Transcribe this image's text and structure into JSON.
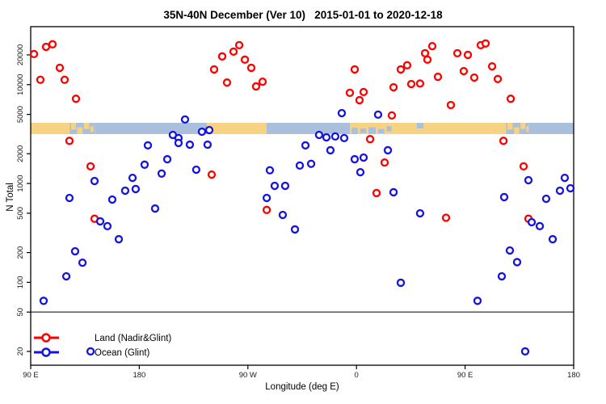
{
  "title": "35N-40N December (Ver 10)   2015-01-01 to 2020-12-18",
  "chart_data": {
    "type": "scatter",
    "title": "35N-40N December (Ver 10)   2015-01-01 to 2020-12-18",
    "xlabel": "Longitude (deg E)",
    "ylabel": "N Total",
    "x_axis": {
      "range": [
        90,
        540
      ],
      "note": "longitude axis wraps: 90E to 180 to 90W to 0 to 90E to 180",
      "ticks": [
        {
          "pos": 90,
          "label": "90 E"
        },
        {
          "pos": 180,
          "label": "180"
        },
        {
          "pos": 270,
          "label": "90 W"
        },
        {
          "pos": 360,
          "label": "0"
        },
        {
          "pos": 450,
          "label": "90 E"
        },
        {
          "pos": 540,
          "label": "180"
        }
      ]
    },
    "y_axis": {
      "scale": "log10",
      "range": [
        14.5,
        38600
      ],
      "ticks": [
        20,
        50,
        100,
        200,
        500,
        1000,
        2000,
        5000,
        10000,
        20000
      ]
    },
    "reference_line": {
      "N": 50,
      "color": "#444444"
    },
    "map_band": {
      "N_top": 4110,
      "N_bottom": 3160,
      "land_color": "#F7D283",
      "ocean_color": "#A9BFDC",
      "segments": [
        {
          "lon0": 90,
          "lon1": 118,
          "base": "land"
        },
        {
          "lon0": 118,
          "lon1": 143,
          "base": "ocean"
        },
        {
          "lon0": 143,
          "lon1": 236,
          "base": "ocean"
        },
        {
          "lon0": 236,
          "lon1": 285.5,
          "base": "land"
        },
        {
          "lon0": 285.5,
          "lon1": 352.5,
          "base": "ocean"
        },
        {
          "lon0": 352.5,
          "lon1": 392.5,
          "base": "land"
        },
        {
          "lon0": 392.5,
          "lon1": 479.5,
          "base": "land"
        },
        {
          "lon0": 479.5,
          "lon1": 503,
          "base": "ocean"
        },
        {
          "lon0": 503,
          "lon1": 540,
          "base": "ocean"
        }
      ],
      "patches": [
        {
          "lon0": 118,
          "lon1": 122.5,
          "top": 0,
          "bot": 1,
          "color": "land"
        },
        {
          "lon0": 123.5,
          "lon1": 127.5,
          "top": 0,
          "bot": 0.6,
          "color": "land"
        },
        {
          "lon0": 128.5,
          "lon1": 133,
          "top": 0.4,
          "bot": 1,
          "color": "land"
        },
        {
          "lon0": 134,
          "lon1": 138.5,
          "top": 0,
          "bot": 0.55,
          "color": "land"
        },
        {
          "lon0": 139.5,
          "lon1": 142,
          "top": 0.3,
          "bot": 0.8,
          "color": "land"
        },
        {
          "lon0": 352.5,
          "lon1": 354.5,
          "top": 0,
          "bot": 1,
          "color": "ocean"
        },
        {
          "lon0": 356,
          "lon1": 361,
          "top": 0.45,
          "bot": 1,
          "color": "ocean"
        },
        {
          "lon0": 363,
          "lon1": 368,
          "top": 0.5,
          "bot": 0.9,
          "color": "ocean"
        },
        {
          "lon0": 370,
          "lon1": 376,
          "top": 0.4,
          "bot": 1,
          "color": "ocean"
        },
        {
          "lon0": 378,
          "lon1": 383,
          "top": 0.55,
          "bot": 0.95,
          "color": "ocean"
        },
        {
          "lon0": 385,
          "lon1": 389,
          "top": 0.3,
          "bot": 0.75,
          "color": "ocean"
        },
        {
          "lon0": 410,
          "lon1": 415.5,
          "top": 0,
          "bot": 0.5,
          "color": "ocean"
        },
        {
          "lon0": 479.5,
          "lon1": 484,
          "top": 0,
          "bot": 1,
          "color": "land"
        },
        {
          "lon0": 485,
          "lon1": 489.5,
          "top": 0,
          "bot": 0.6,
          "color": "land"
        },
        {
          "lon0": 490.5,
          "lon1": 495,
          "top": 0.4,
          "bot": 1,
          "color": "land"
        },
        {
          "lon0": 496,
          "lon1": 500,
          "top": 0,
          "bot": 0.55,
          "color": "land"
        },
        {
          "lon0": 500.8,
          "lon1": 502.5,
          "top": 0.3,
          "bot": 0.8,
          "color": "land"
        }
      ]
    },
    "series": [
      {
        "name": "Land (Nadir&Glint)",
        "color": "#FF0000",
        "points": [
          [
            92.7,
            20400
          ],
          [
            102.7,
            24100
          ],
          [
            108.1,
            25600
          ],
          [
            114.1,
            14800
          ],
          [
            98.0,
            11200
          ],
          [
            118.1,
            11200
          ],
          [
            127.5,
            7200
          ],
          [
            122.1,
            2700
          ],
          [
            139.6,
            1490
          ],
          [
            142.9,
            440
          ],
          [
            240.0,
            1230
          ],
          [
            242.0,
            14250
          ],
          [
            248.7,
            19300
          ],
          [
            258.1,
            21600
          ],
          [
            262.8,
            25100
          ],
          [
            267.5,
            17900
          ],
          [
            272.8,
            14800
          ],
          [
            252.7,
            10500
          ],
          [
            276.8,
            9600
          ],
          [
            282.2,
            10700
          ],
          [
            358.5,
            14250
          ],
          [
            354.5,
            8260
          ],
          [
            365.9,
            8420
          ],
          [
            362.5,
            6970
          ],
          [
            390.7,
            9400
          ],
          [
            389.3,
            4880
          ],
          [
            396.7,
            14250
          ],
          [
            402.0,
            15700
          ],
          [
            405.4,
            10150
          ],
          [
            412.7,
            10260
          ],
          [
            416.8,
            20800
          ],
          [
            422.8,
            24500
          ],
          [
            418.8,
            17900
          ],
          [
            427.5,
            12000
          ],
          [
            438.2,
            6220
          ],
          [
            443.6,
            20800
          ],
          [
            448.9,
            13700
          ],
          [
            452.3,
            20000
          ],
          [
            463.0,
            25100
          ],
          [
            467.0,
            26100
          ],
          [
            457.6,
            11800
          ],
          [
            472.4,
            15300
          ],
          [
            477.1,
            11400
          ],
          [
            487.8,
            7200
          ],
          [
            481.8,
            2700
          ],
          [
            371.3,
            2810
          ],
          [
            383.3,
            1630
          ],
          [
            376.6,
            800
          ],
          [
            285.6,
            540
          ],
          [
            434.2,
            450
          ],
          [
            498.5,
            1490
          ],
          [
            502.5,
            440
          ]
        ]
      },
      {
        "name": "Ocean (Glint)",
        "color": "#1414E0",
        "points": [
          [
            217.9,
            4440
          ],
          [
            207.8,
            3100
          ],
          [
            212.5,
            2880
          ],
          [
            231.9,
            3340
          ],
          [
            238.0,
            3470
          ],
          [
            347.8,
            5150
          ],
          [
            377.9,
            4970
          ],
          [
            329.0,
            3100
          ],
          [
            335.1,
            2930
          ],
          [
            342.4,
            2990
          ],
          [
            349.8,
            2880
          ],
          [
            142.9,
            1060
          ],
          [
            122.1,
            714
          ],
          [
            157.6,
            687
          ],
          [
            147.6,
            414
          ],
          [
            153.6,
            370
          ],
          [
            163.0,
            273
          ],
          [
            126.8,
            206
          ],
          [
            168.3,
            845
          ],
          [
            174.4,
            1140
          ],
          [
            177.0,
            879
          ],
          [
            184.4,
            1550
          ],
          [
            187.1,
            2430
          ],
          [
            198.5,
            1260
          ],
          [
            193.1,
            558
          ],
          [
            203.2,
            1760
          ],
          [
            212.5,
            2570
          ],
          [
            221.9,
            2470
          ],
          [
            227.2,
            1380
          ],
          [
            236.6,
            2470
          ],
          [
            317.7,
            2430
          ],
          [
            338.4,
            2170
          ],
          [
            313.0,
            1520
          ],
          [
            322.4,
            1580
          ],
          [
            288.2,
            1360
          ],
          [
            292.2,
            947
          ],
          [
            300.9,
            947
          ],
          [
            285.6,
            714
          ],
          [
            298.9,
            481
          ],
          [
            309.0,
            343
          ],
          [
            358.5,
            1760
          ],
          [
            365.9,
            1830
          ],
          [
            363.2,
            1300
          ],
          [
            386.0,
            2170
          ],
          [
            390.7,
            815
          ],
          [
            412.7,
            499
          ],
          [
            482.4,
            728
          ],
          [
            502.5,
            1080
          ],
          [
            532.6,
            1140
          ],
          [
            528.6,
            845
          ],
          [
            537.3,
            894
          ],
          [
            517.2,
            700
          ],
          [
            505.2,
            406
          ],
          [
            511.9,
            370
          ],
          [
            522.6,
            273
          ],
          [
            487.1,
            210
          ],
          [
            132.9,
            158
          ],
          [
            119.5,
            115
          ],
          [
            100.7,
            65
          ],
          [
            139.6,
            20
          ],
          [
            396.7,
            99
          ],
          [
            493.1,
            160
          ],
          [
            480.4,
            115
          ],
          [
            460.3,
            65
          ],
          [
            499.8,
            20
          ]
        ]
      }
    ],
    "legend": {
      "position": "bottom-left",
      "entries": [
        "Land (Nadir&Glint)",
        "Ocean (Glint)"
      ]
    }
  }
}
